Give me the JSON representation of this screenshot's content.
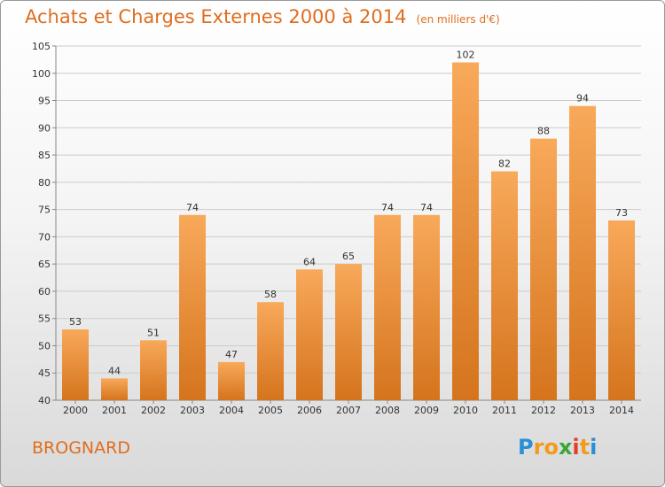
{
  "title": "Achats et Charges Externes 2000 à 2014",
  "subtitle": "(en milliers d'€)",
  "city": "BROGNARD",
  "logo": {
    "letters": [
      "P",
      "r",
      "o",
      "x",
      "i",
      "t",
      "i"
    ],
    "colors": [
      "#2a8fd6",
      "#f29a1c",
      "#f29a1c",
      "#3aa63a",
      "#e0402a",
      "#f29a1c",
      "#2a8fd6"
    ]
  },
  "colors": {
    "bar_light": "#f8a95a",
    "bar_dark": "#d5741d",
    "accent": "#e06d1d",
    "grid": "#cccccc"
  },
  "chart_data": {
    "type": "bar",
    "categories": [
      "2000",
      "2001",
      "2002",
      "2003",
      "2004",
      "2005",
      "2006",
      "2007",
      "2008",
      "2009",
      "2010",
      "2011",
      "2012",
      "2013",
      "2014"
    ],
    "values": [
      53,
      44,
      51,
      74,
      47,
      58,
      64,
      65,
      74,
      74,
      102,
      82,
      88,
      94,
      73
    ],
    "value_labels": [
      "53",
      "44",
      "51",
      "74",
      "47",
      "58",
      "64",
      "65",
      "74",
      "74",
      "102",
      "82",
      "88",
      "94",
      "73"
    ],
    "yticks": [
      "40",
      "45",
      "50",
      "55",
      "60",
      "65",
      "70",
      "75",
      "80",
      "85",
      "90",
      "95",
      "100",
      "105"
    ],
    "ylim": [
      40,
      105
    ],
    "grid": true
  }
}
